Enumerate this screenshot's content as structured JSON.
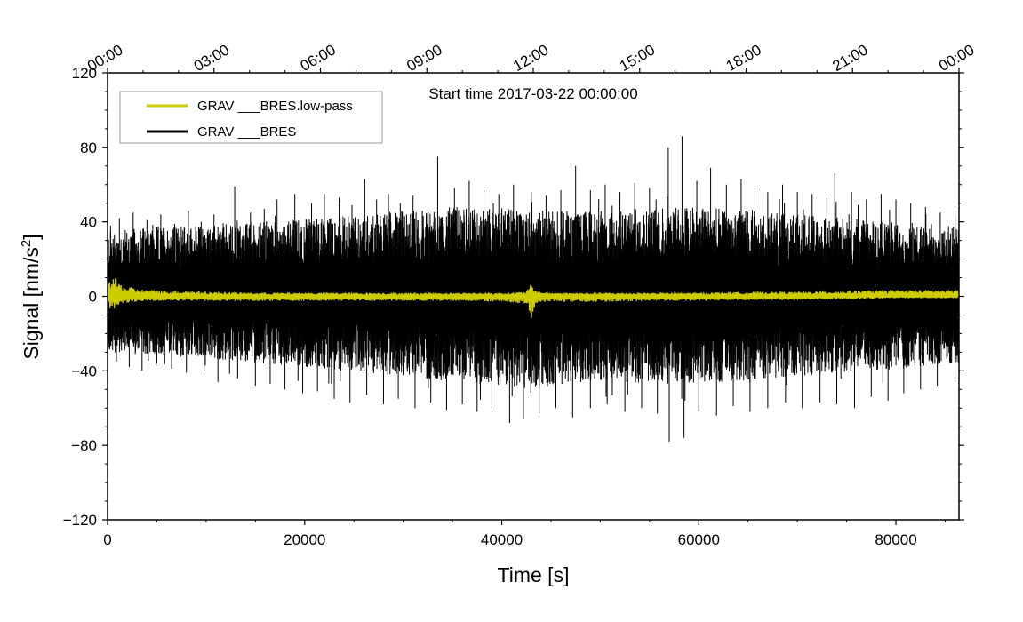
{
  "chart_data": {
    "type": "line",
    "annotation": "Start time 2017-03-22 00:00:00",
    "xlabel": "Time [s]",
    "ylabel_main": "Signal [nm/s",
    "ylabel_sup": "2",
    "ylabel_close": "]",
    "xlim": [
      0,
      86400
    ],
    "ylim": [
      -120,
      120
    ],
    "x_ticks": [
      {
        "value": 0,
        "label": "0"
      },
      {
        "value": 20000,
        "label": "20000"
      },
      {
        "value": 40000,
        "label": "40000"
      },
      {
        "value": 60000,
        "label": "60000"
      },
      {
        "value": 80000,
        "label": "80000"
      }
    ],
    "y_ticks": [
      {
        "value": 120,
        "label": "120"
      },
      {
        "value": 80,
        "label": "80"
      },
      {
        "value": 40,
        "label": "40"
      },
      {
        "value": 0,
        "label": "0"
      },
      {
        "value": -40,
        "label": "−40"
      },
      {
        "value": -80,
        "label": "−80"
      },
      {
        "value": -120,
        "label": "−120"
      }
    ],
    "top_ticks": [
      {
        "value": 0,
        "label": "00:00"
      },
      {
        "value": 10800,
        "label": "03:00"
      },
      {
        "value": 21600,
        "label": "06:00"
      },
      {
        "value": 32400,
        "label": "09:00"
      },
      {
        "value": 43200,
        "label": "12:00"
      },
      {
        "value": 54000,
        "label": "15:00"
      },
      {
        "value": 64800,
        "label": "18:00"
      },
      {
        "value": 75600,
        "label": "21:00"
      },
      {
        "value": 86400,
        "label": "00:00"
      }
    ],
    "legend_position": "top-left",
    "series": [
      {
        "name": "GRAV ___BRES",
        "color": "#000000",
        "envelope": {
          "x": [
            0,
            5000,
            10000,
            15000,
            20000,
            25000,
            30000,
            35000,
            40000,
            43000,
            45000,
            50000,
            55000,
            60000,
            65000,
            70000,
            75000,
            80000,
            86400
          ],
          "upper": [
            35,
            38,
            38,
            40,
            42,
            44,
            46,
            48,
            48,
            47,
            46,
            46,
            48,
            48,
            46,
            44,
            42,
            40,
            38
          ],
          "lower": [
            -30,
            -32,
            -33,
            -36,
            -38,
            -40,
            -43,
            -46,
            -48,
            -50,
            -48,
            -46,
            -47,
            -47,
            -45,
            -43,
            -41,
            -39,
            -36
          ]
        },
        "spikes": [
          {
            "x": 300,
            "y": 38
          },
          {
            "x": 1200,
            "y": 42
          },
          {
            "x": 2600,
            "y": 45
          },
          {
            "x": 4000,
            "y": 41
          },
          {
            "x": 5400,
            "y": 44
          },
          {
            "x": 6800,
            "y": 39
          },
          {
            "x": 8200,
            "y": 46
          },
          {
            "x": 9500,
            "y": 40
          },
          {
            "x": 10800,
            "y": 44
          },
          {
            "x": 12900,
            "y": 59
          },
          {
            "x": 14500,
            "y": 45
          },
          {
            "x": 15900,
            "y": 47
          },
          {
            "x": 17200,
            "y": 52
          },
          {
            "x": 19000,
            "y": 55
          },
          {
            "x": 20700,
            "y": 50
          },
          {
            "x": 22000,
            "y": 55
          },
          {
            "x": 23500,
            "y": 53
          },
          {
            "x": 24800,
            "y": 49
          },
          {
            "x": 26100,
            "y": 63
          },
          {
            "x": 27300,
            "y": 52
          },
          {
            "x": 28500,
            "y": 55
          },
          {
            "x": 29700,
            "y": 50
          },
          {
            "x": 31000,
            "y": 54
          },
          {
            "x": 33500,
            "y": 75
          },
          {
            "x": 35200,
            "y": 58
          },
          {
            "x": 36700,
            "y": 62
          },
          {
            "x": 38200,
            "y": 57
          },
          {
            "x": 39700,
            "y": 55
          },
          {
            "x": 41200,
            "y": 60
          },
          {
            "x": 43000,
            "y": 56
          },
          {
            "x": 44500,
            "y": 54
          },
          {
            "x": 46000,
            "y": 57
          },
          {
            "x": 47500,
            "y": 70
          },
          {
            "x": 49000,
            "y": 57
          },
          {
            "x": 50500,
            "y": 60
          },
          {
            "x": 52000,
            "y": 56
          },
          {
            "x": 53500,
            "y": 61
          },
          {
            "x": 55000,
            "y": 58
          },
          {
            "x": 56900,
            "y": 80
          },
          {
            "x": 58300,
            "y": 86
          },
          {
            "x": 59800,
            "y": 62
          },
          {
            "x": 61200,
            "y": 69
          },
          {
            "x": 62800,
            "y": 60
          },
          {
            "x": 64300,
            "y": 63
          },
          {
            "x": 65700,
            "y": 58
          },
          {
            "x": 67000,
            "y": 56
          },
          {
            "x": 68500,
            "y": 60
          },
          {
            "x": 70000,
            "y": 56
          },
          {
            "x": 71500,
            "y": 55
          },
          {
            "x": 73000,
            "y": 53
          },
          {
            "x": 73800,
            "y": 66
          },
          {
            "x": 75500,
            "y": 56
          },
          {
            "x": 77000,
            "y": 52
          },
          {
            "x": 78500,
            "y": 55
          },
          {
            "x": 80000,
            "y": 52
          },
          {
            "x": 81500,
            "y": 50
          },
          {
            "x": 83000,
            "y": 48
          },
          {
            "x": 84500,
            "y": 45
          },
          {
            "x": 86000,
            "y": 43
          },
          {
            "x": 900,
            "y": -35
          },
          {
            "x": 2200,
            "y": -38
          },
          {
            "x": 3500,
            "y": -40
          },
          {
            "x": 5000,
            "y": -36
          },
          {
            "x": 6500,
            "y": -39
          },
          {
            "x": 8000,
            "y": -41
          },
          {
            "x": 9800,
            "y": -40
          },
          {
            "x": 11200,
            "y": -46
          },
          {
            "x": 13200,
            "y": -44
          },
          {
            "x": 15000,
            "y": -48
          },
          {
            "x": 16500,
            "y": -47
          },
          {
            "x": 18000,
            "y": -50
          },
          {
            "x": 19800,
            "y": -52
          },
          {
            "x": 21300,
            "y": -51
          },
          {
            "x": 23000,
            "y": -55
          },
          {
            "x": 24600,
            "y": -57
          },
          {
            "x": 26300,
            "y": -53
          },
          {
            "x": 28000,
            "y": -58
          },
          {
            "x": 29500,
            "y": -55
          },
          {
            "x": 31200,
            "y": -60
          },
          {
            "x": 32800,
            "y": -57
          },
          {
            "x": 34400,
            "y": -61
          },
          {
            "x": 36000,
            "y": -58
          },
          {
            "x": 37500,
            "y": -62
          },
          {
            "x": 39000,
            "y": -60
          },
          {
            "x": 40800,
            "y": -68
          },
          {
            "x": 42200,
            "y": -66
          },
          {
            "x": 43800,
            "y": -63
          },
          {
            "x": 45500,
            "y": -60
          },
          {
            "x": 47200,
            "y": -65
          },
          {
            "x": 49000,
            "y": -60
          },
          {
            "x": 50700,
            "y": -58
          },
          {
            "x": 52500,
            "y": -62
          },
          {
            "x": 54200,
            "y": -60
          },
          {
            "x": 55800,
            "y": -63
          },
          {
            "x": 57000,
            "y": -78
          },
          {
            "x": 58500,
            "y": -76
          },
          {
            "x": 60000,
            "y": -62
          },
          {
            "x": 61800,
            "y": -64
          },
          {
            "x": 63500,
            "y": -59
          },
          {
            "x": 65200,
            "y": -62
          },
          {
            "x": 67000,
            "y": -60
          },
          {
            "x": 68800,
            "y": -57
          },
          {
            "x": 70500,
            "y": -60
          },
          {
            "x": 72300,
            "y": -57
          },
          {
            "x": 74000,
            "y": -58
          },
          {
            "x": 75800,
            "y": -60
          },
          {
            "x": 77500,
            "y": -54
          },
          {
            "x": 79200,
            "y": -56
          },
          {
            "x": 80800,
            "y": -52
          },
          {
            "x": 82500,
            "y": -50
          },
          {
            "x": 84200,
            "y": -48
          },
          {
            "x": 86000,
            "y": -46
          }
        ]
      },
      {
        "name": "GRAV ___BRES.low-pass",
        "color": "#cccc00",
        "x": [
          0,
          300,
          600,
          900,
          1200,
          1500,
          2000,
          2500,
          3000,
          4000,
          5000,
          6000,
          8000,
          10000,
          15000,
          20000,
          25000,
          30000,
          35000,
          40000,
          42500,
          42800,
          43000,
          43200,
          43500,
          44000,
          45000,
          50000,
          55000,
          60000,
          65000,
          70000,
          75000,
          80000,
          86400
        ],
        "upper": [
          6,
          9,
          11,
          9,
          7,
          6,
          5,
          5,
          4,
          3.5,
          3.5,
          3,
          3,
          2.5,
          2,
          2,
          2,
          2,
          2,
          2,
          2.5,
          5,
          7,
          5,
          3,
          2.5,
          2,
          2,
          2,
          2,
          2.5,
          2.5,
          3,
          3.5,
          3.5
        ],
        "lower": [
          -5,
          -8,
          -7,
          -6,
          -5,
          -4,
          -3.5,
          -3,
          -3,
          -2.5,
          -2.5,
          -2.5,
          -2.5,
          -2.5,
          -2.5,
          -2.5,
          -2.5,
          -2.5,
          -2.5,
          -3,
          -4,
          -8,
          -12,
          -8,
          -4,
          -3,
          -3,
          -3,
          -2.5,
          -2.5,
          -2,
          -2,
          -1.5,
          -1,
          -1
        ]
      }
    ]
  }
}
